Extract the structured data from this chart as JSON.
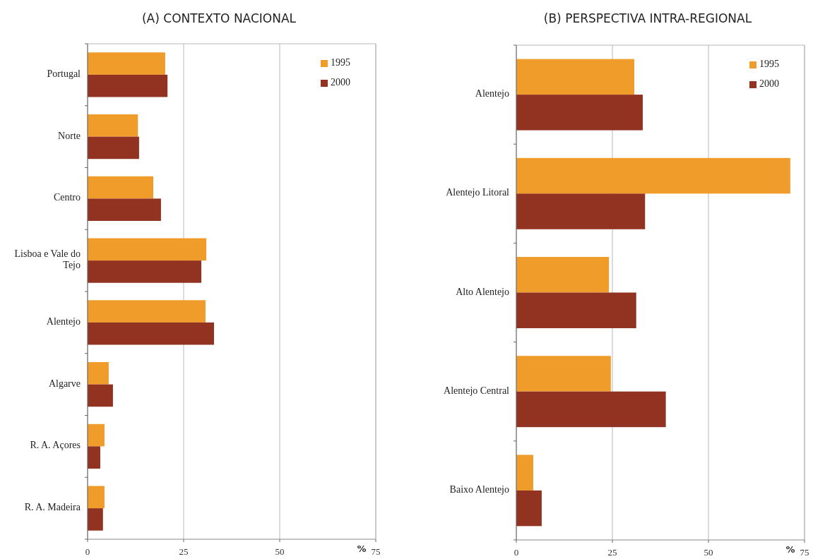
{
  "chart_data": [
    {
      "type": "bar",
      "orientation": "horizontal",
      "title": "(A) CONTEXTO NACIONAL",
      "xlabel": "%",
      "categories": [
        "Portugal",
        "Norte",
        "Centro",
        "Lisboa e Vale do Tejo",
        "Alentejo",
        "Algarve",
        "R. A. Açores",
        "R. A. Madeira"
      ],
      "series": [
        {
          "name": "1995",
          "color": "#f09c2a",
          "values": [
            20.2,
            13.1,
            17.1,
            30.9,
            30.7,
            5.5,
            4.4,
            4.4
          ]
        },
        {
          "name": "2000",
          "color": "#923220",
          "values": [
            20.8,
            13.4,
            19.1,
            29.6,
            32.9,
            6.6,
            3.3,
            4.0
          ]
        }
      ],
      "xlim": [
        0,
        75
      ],
      "xticks": [
        0,
        25,
        50,
        75
      ],
      "grid": "x",
      "legend": "top right"
    },
    {
      "type": "bar",
      "orientation": "horizontal",
      "title": "(B) PERSPECTIVA INTRA-REGIONAL",
      "xlabel": "%",
      "categories": [
        "Alentejo",
        "Alentejo Litoral",
        "Alto Alentejo",
        "Alentejo Central",
        "Baixo Alentejo"
      ],
      "series": [
        {
          "name": "1995",
          "color": "#f09c2a",
          "values": [
            30.7,
            71.3,
            24.1,
            24.6,
            4.4
          ]
        },
        {
          "name": "2000",
          "color": "#923220",
          "values": [
            32.9,
            33.5,
            31.2,
            38.9,
            6.6
          ]
        }
      ],
      "xlim": [
        0,
        75
      ],
      "xticks": [
        0,
        25,
        50,
        75
      ],
      "grid": "x",
      "legend": "top right"
    }
  ]
}
